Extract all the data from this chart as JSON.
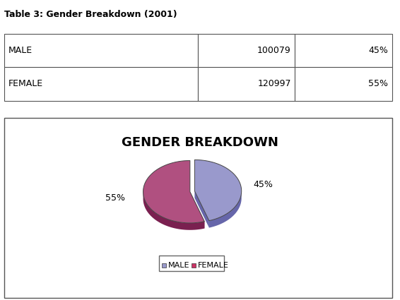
{
  "title": "Table 3: Gender Breakdown (2001)",
  "table_data": [
    [
      "MALE",
      "100079",
      "45%"
    ],
    [
      "FEMALE",
      "120997",
      "55%"
    ]
  ],
  "pie_title": "GENDER BREAKDOWN",
  "labels": [
    "MALE",
    "FEMALE"
  ],
  "values": [
    45,
    55
  ],
  "colors_top": [
    "#9999cc",
    "#cc3366"
  ],
  "colors_side": [
    "#6666aa",
    "#882244"
  ],
  "pct_labels": [
    "45%",
    "55%"
  ],
  "legend_labels": [
    "MALE",
    "FEMALE"
  ],
  "legend_colors": [
    "#9999cc",
    "#cc3366"
  ]
}
